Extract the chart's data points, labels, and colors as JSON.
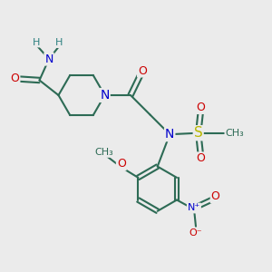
{
  "background_color": "#ebebeb",
  "bond_color": "#2d6b55",
  "bond_width": 1.5,
  "atom_colors": {
    "C": "#2d6b55",
    "N": "#0000cc",
    "O": "#cc0000",
    "S": "#b8b800",
    "H": "#2d8080"
  },
  "font_size": 9,
  "figsize": [
    3.0,
    3.0
  ],
  "dpi": 100,
  "xlim": [
    0,
    10
  ],
  "ylim": [
    0,
    10
  ]
}
